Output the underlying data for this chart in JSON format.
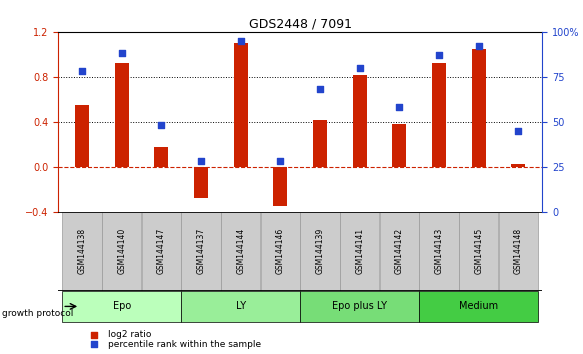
{
  "title": "GDS2448 / 7091",
  "samples": [
    "GSM144138",
    "GSM144140",
    "GSM144147",
    "GSM144137",
    "GSM144144",
    "GSM144146",
    "GSM144139",
    "GSM144141",
    "GSM144142",
    "GSM144143",
    "GSM144145",
    "GSM144148"
  ],
  "log2_ratio": [
    0.55,
    0.92,
    0.18,
    -0.28,
    1.1,
    -0.35,
    0.42,
    0.82,
    0.38,
    0.92,
    1.05,
    0.03
  ],
  "percentile_rank": [
    78,
    88,
    48,
    28,
    95,
    28,
    68,
    80,
    58,
    87,
    92,
    45
  ],
  "groups": [
    {
      "label": "Epo",
      "start": 0,
      "end": 3,
      "color": "#bbffbb"
    },
    {
      "label": "LY",
      "start": 3,
      "end": 6,
      "color": "#99ee99"
    },
    {
      "label": "Epo plus LY",
      "start": 6,
      "end": 9,
      "color": "#77dd77"
    },
    {
      "label": "Medium",
      "start": 9,
      "end": 12,
      "color": "#44cc44"
    }
  ],
  "bar_color": "#cc2200",
  "dot_color": "#2244cc",
  "ylim_left": [
    -0.4,
    1.2
  ],
  "ylim_right": [
    0,
    100
  ],
  "yticks_left": [
    -0.4,
    0.0,
    0.4,
    0.8,
    1.2
  ],
  "yticks_right": [
    0,
    25,
    50,
    75,
    100
  ],
  "hlines": [
    0.4,
    0.8
  ],
  "zero_line": 0.0,
  "bar_width": 0.35,
  "background_color": "#ffffff",
  "sample_box_color": "#cccccc",
  "sample_box_edge": "#999999"
}
